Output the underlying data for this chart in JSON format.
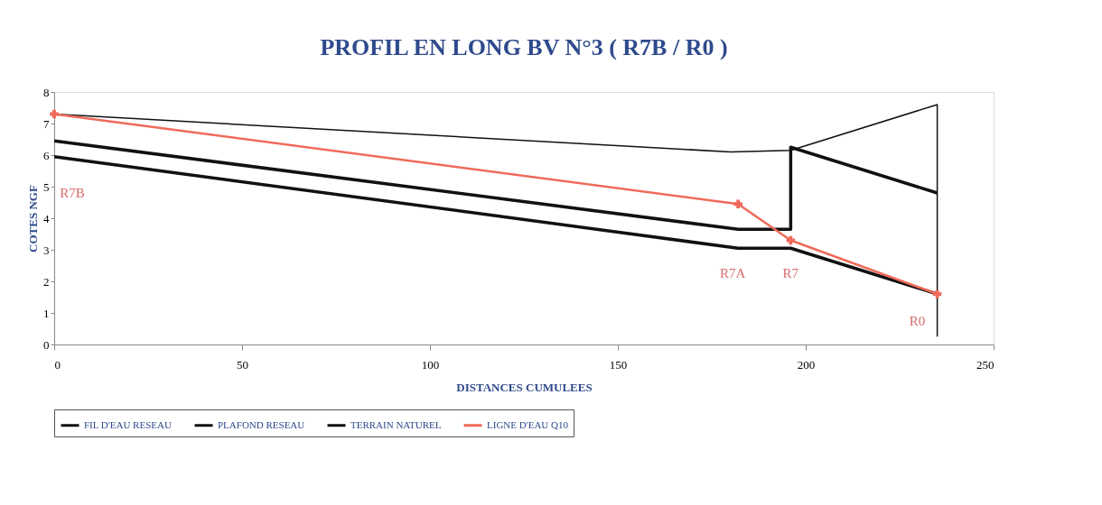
{
  "chart_data": {
    "type": "line",
    "title": "PROFIL EN LONG BV N°3 ( R7B / R0 )",
    "xlabel": "DISTANCES CUMULEES",
    "ylabel": "COTES NGF",
    "xlim": [
      0,
      250
    ],
    "xticks": [
      0,
      50,
      100,
      150,
      200,
      250
    ],
    "ylim": [
      0,
      8
    ],
    "yticks": [
      0,
      1,
      2,
      3,
      4,
      5,
      6,
      7,
      8
    ],
    "grid": false,
    "legend": "bottom",
    "line_style": "solid",
    "series": [
      {
        "name": "FIL D'EAU RESEAU",
        "color": "#111111",
        "x": [
          0,
          182,
          196,
          235
        ],
        "values": [
          5.95,
          3.05,
          3.05,
          1.6
        ],
        "marker": "none"
      },
      {
        "name": "PLAFOND RESEAU",
        "color": "#111111",
        "x": [
          0,
          182,
          196,
          196,
          235
        ],
        "values": [
          6.45,
          3.65,
          3.65,
          6.25,
          4.8
        ],
        "marker": "none"
      },
      {
        "name": "TERRAIN NATUREL",
        "color": "#111111",
        "x": [
          0,
          180,
          196,
          235,
          235
        ],
        "values": [
          7.3,
          6.1,
          6.15,
          7.6,
          0.25
        ],
        "marker": "none"
      },
      {
        "name": "LIGNE D'EAU Q10",
        "color": "#f06a5a",
        "x": [
          0,
          182,
          196,
          235
        ],
        "values": [
          7.3,
          4.45,
          3.3,
          1.6
        ],
        "marker": "cross"
      }
    ],
    "annotations": [
      {
        "text": "R7B",
        "x": 0,
        "y": 5.95
      },
      {
        "text": "R7A",
        "x": 182,
        "y": 3.05
      },
      {
        "text": "R7",
        "x": 196,
        "y": 3.05
      },
      {
        "text": "R0",
        "x": 235,
        "y": 1.6
      }
    ]
  }
}
